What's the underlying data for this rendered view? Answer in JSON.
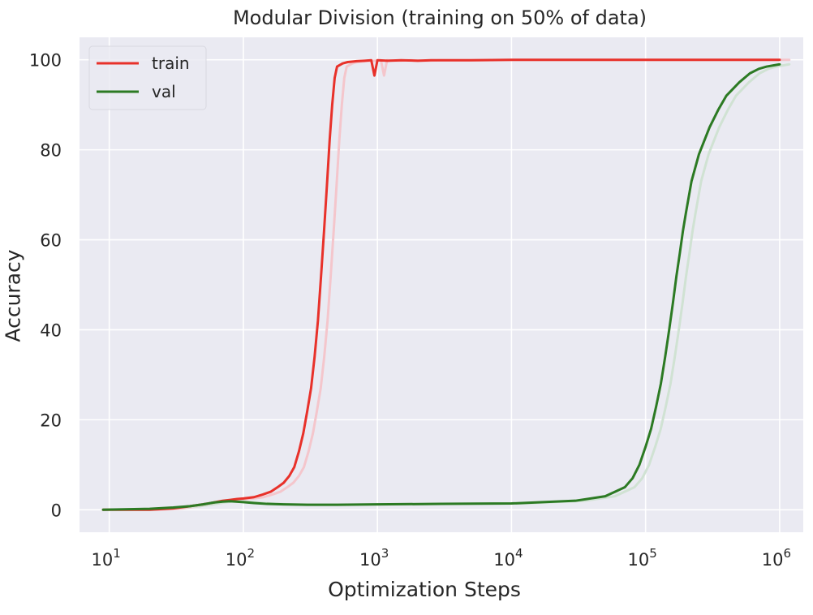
{
  "chart_data": {
    "type": "line",
    "title": "Modular Division (training on 50% of data)",
    "xlabel": "Optimization Steps",
    "ylabel": "Accuracy",
    "xscale": "log",
    "xlim": [
      6,
      1500000
    ],
    "ylim": [
      -5,
      105
    ],
    "grid": true,
    "legend_position": "top-left",
    "background_color": "#eaeaf2",
    "x_ticks": [
      {
        "value": 10,
        "base": "10",
        "exp": "1"
      },
      {
        "value": 100,
        "base": "10",
        "exp": "2"
      },
      {
        "value": 1000,
        "base": "10",
        "exp": "3"
      },
      {
        "value": 10000,
        "base": "10",
        "exp": "4"
      },
      {
        "value": 100000,
        "base": "10",
        "exp": "5"
      },
      {
        "value": 1000000,
        "base": "10",
        "exp": "6"
      }
    ],
    "y_ticks": [
      0,
      20,
      40,
      60,
      80,
      100
    ],
    "series": [
      {
        "name": "train",
        "color": "#e8312a",
        "faint_color": "#f4c6cc",
        "x": [
          9,
          15,
          20,
          30,
          40,
          50,
          60,
          70,
          80,
          90,
          100,
          120,
          140,
          160,
          180,
          200,
          220,
          240,
          260,
          280,
          300,
          320,
          340,
          360,
          380,
          400,
          420,
          440,
          460,
          480,
          500,
          550,
          600,
          700,
          800,
          900,
          950,
          1000,
          1200,
          1500,
          2000,
          2500,
          3000,
          5000,
          10000,
          30000,
          100000,
          300000,
          1000000
        ],
        "y": [
          0,
          0,
          0,
          0.3,
          0.8,
          1.2,
          1.6,
          2.0,
          2.2,
          2.4,
          2.5,
          2.8,
          3.4,
          4.0,
          5.0,
          6.0,
          7.5,
          9.5,
          13,
          17,
          22,
          27,
          34,
          42,
          52,
          62,
          72,
          82,
          90,
          96,
          98.5,
          99.2,
          99.5,
          99.7,
          99.8,
          99.9,
          96.5,
          99.9,
          99.8,
          99.9,
          99.8,
          99.9,
          99.9,
          99.9,
          100,
          100,
          100,
          100,
          100
        ]
      },
      {
        "name": "val",
        "color": "#2c7a23",
        "faint_color": "#d0e2d3",
        "x": [
          9,
          20,
          30,
          40,
          50,
          60,
          70,
          80,
          100,
          120,
          150,
          200,
          300,
          500,
          1000,
          3000,
          10000,
          30000,
          50000,
          70000,
          80000,
          90000,
          100000,
          110000,
          120000,
          130000,
          140000,
          150000,
          160000,
          170000,
          180000,
          190000,
          200000,
          220000,
          250000,
          300000,
          350000,
          400000,
          500000,
          600000,
          700000,
          800000,
          1000000
        ],
        "y": [
          0,
          0.2,
          0.5,
          0.8,
          1.2,
          1.6,
          1.8,
          1.9,
          1.7,
          1.5,
          1.3,
          1.2,
          1.1,
          1.1,
          1.2,
          1.3,
          1.4,
          2.0,
          3.0,
          5.0,
          7.0,
          10.0,
          14.0,
          18.0,
          23.0,
          28.0,
          34.0,
          40.0,
          46.0,
          52.0,
          57.0,
          62.0,
          66.0,
          73.0,
          79.0,
          85.0,
          89.0,
          92.0,
          95.0,
          97.0,
          98.0,
          98.5,
          99.0
        ]
      }
    ]
  }
}
